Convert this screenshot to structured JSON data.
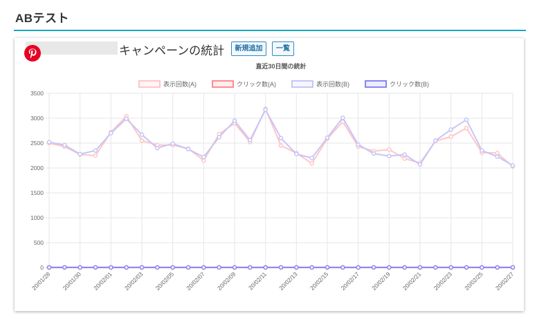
{
  "page": {
    "title": "ABテスト"
  },
  "campaign": {
    "title": "キャンペーンの統計",
    "add_button": "新規追加",
    "list_button": "一覧"
  },
  "icons": {
    "brand": "pinterest-icon"
  },
  "chart_data": {
    "type": "line",
    "title": "直近30日間の統計",
    "ylim": [
      0,
      3500
    ],
    "yticks": [
      0,
      500,
      1000,
      1500,
      2000,
      2500,
      3000,
      3500
    ],
    "grid": true,
    "legend_position": "top",
    "x": [
      "20/01/28",
      "20/01/29",
      "20/01/30",
      "20/01/31",
      "20/02/01",
      "20/02/02",
      "20/02/03",
      "20/02/04",
      "20/02/05",
      "20/02/06",
      "20/02/07",
      "20/02/08",
      "20/02/09",
      "20/02/10",
      "20/02/11",
      "20/02/12",
      "20/02/13",
      "20/02/14",
      "20/02/15",
      "20/02/16",
      "20/02/17",
      "20/02/18",
      "20/02/19",
      "20/02/20",
      "20/02/21",
      "20/02/22",
      "20/02/23",
      "20/02/24",
      "20/02/25",
      "20/02/26",
      "20/02/27"
    ],
    "x_tick_labels": [
      "20/01/28",
      "20/01/30",
      "20/02/01",
      "20/02/03",
      "20/02/05",
      "20/02/07",
      "20/02/09",
      "20/02/11",
      "20/02/13",
      "20/02/15",
      "20/02/17",
      "20/02/19",
      "20/02/21",
      "20/02/23",
      "20/02/25",
      "20/02/27"
    ],
    "series": [
      {
        "name": "表示回数(A)",
        "color": "#ffc5c7",
        "values": [
          2500,
          2430,
          2270,
          2250,
          2720,
          3040,
          2550,
          2460,
          2460,
          2390,
          2150,
          2680,
          2900,
          2520,
          3190,
          2450,
          2300,
          2090,
          2590,
          2930,
          2430,
          2340,
          2370,
          2190,
          2100,
          2540,
          2630,
          2800,
          2310,
          2300,
          2030
        ]
      },
      {
        "name": "クリック数(A)",
        "color": "#ff8a91",
        "values": [
          3,
          2,
          3,
          2,
          3,
          3,
          2,
          3,
          3,
          2,
          3,
          3,
          2,
          3,
          3,
          2,
          3,
          3,
          2,
          3,
          3,
          2,
          3,
          3,
          2,
          3,
          3,
          2,
          3,
          3,
          2
        ]
      },
      {
        "name": "表示回数(B)",
        "color": "#c6c5f7",
        "values": [
          2520,
          2460,
          2280,
          2350,
          2700,
          2990,
          2670,
          2400,
          2490,
          2380,
          2220,
          2620,
          2950,
          2560,
          3170,
          2600,
          2280,
          2200,
          2610,
          3010,
          2470,
          2290,
          2240,
          2270,
          2070,
          2550,
          2770,
          2970,
          2350,
          2230,
          2050
        ]
      },
      {
        "name": "クリック数(B)",
        "color": "#8885f0",
        "values": [
          2,
          3,
          2,
          3,
          2,
          2,
          3,
          2,
          2,
          3,
          2,
          2,
          3,
          2,
          2,
          3,
          2,
          2,
          3,
          2,
          2,
          3,
          2,
          2,
          3,
          2,
          2,
          3,
          2,
          2,
          3
        ]
      }
    ]
  }
}
